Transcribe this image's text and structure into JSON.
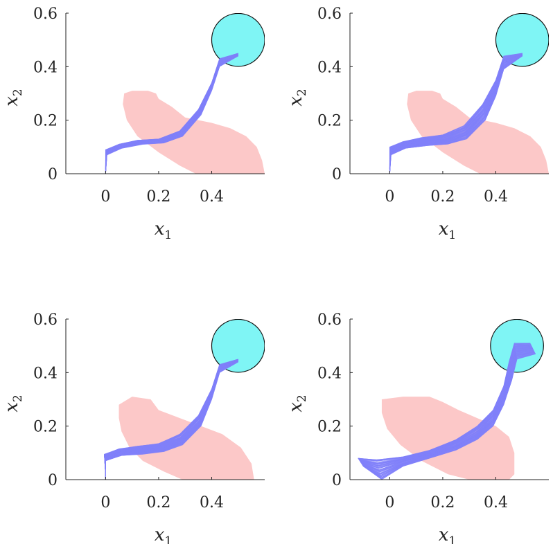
{
  "chart_data": [
    {
      "type": "scatter",
      "panel": "top-left",
      "xlabel": "x",
      "xlabel_sub": "1",
      "ylabel": "x",
      "ylabel_sub": "2",
      "xlim": [
        -0.15,
        0.6
      ],
      "ylim": [
        0,
        0.6
      ],
      "xticks": [
        0,
        0.2,
        0.4
      ],
      "xtick_labels": [
        "0",
        "0.2",
        "0.4"
      ],
      "yticks": [
        0,
        0.2,
        0.4,
        0.6
      ],
      "ytick_labels": [
        "0",
        "0.2",
        "0.4",
        "0.6"
      ],
      "target": {
        "center": [
          0.5,
          0.5
        ],
        "radius": 0.1
      },
      "unsafe_region": [
        [
          0.07,
          0.3
        ],
        [
          0.1,
          0.31
        ],
        [
          0.16,
          0.31
        ],
        [
          0.19,
          0.3
        ],
        [
          0.2,
          0.28
        ],
        [
          0.25,
          0.25
        ],
        [
          0.3,
          0.21
        ],
        [
          0.4,
          0.19
        ],
        [
          0.47,
          0.17
        ],
        [
          0.53,
          0.14
        ],
        [
          0.57,
          0.1
        ],
        [
          0.59,
          0.05
        ],
        [
          0.6,
          0
        ],
        [
          0.34,
          0
        ],
        [
          0.28,
          0.03
        ],
        [
          0.2,
          0.08
        ],
        [
          0.12,
          0.14
        ],
        [
          0.08,
          0.2
        ],
        [
          0.065,
          0.26
        ]
      ],
      "trajectory_band": {
        "upper": [
          [
            0.0,
            0.02
          ],
          [
            0.0,
            0.09
          ],
          [
            0.05,
            0.11
          ],
          [
            0.12,
            0.125
          ],
          [
            0.2,
            0.13
          ],
          [
            0.28,
            0.16
          ],
          [
            0.35,
            0.24
          ],
          [
            0.4,
            0.34
          ],
          [
            0.43,
            0.43
          ],
          [
            0.5,
            0.45
          ]
        ],
        "lower": [
          [
            0.0,
            0.0
          ],
          [
            0.005,
            0.07
          ],
          [
            0.06,
            0.095
          ],
          [
            0.14,
            0.11
          ],
          [
            0.22,
            0.115
          ],
          [
            0.29,
            0.14
          ],
          [
            0.36,
            0.22
          ],
          [
            0.4,
            0.31
          ],
          [
            0.43,
            0.4
          ],
          [
            0.5,
            0.44
          ]
        ]
      }
    },
    {
      "type": "scatter",
      "panel": "top-right",
      "xlabel": "x",
      "xlabel_sub": "1",
      "ylabel": "x",
      "ylabel_sub": "2",
      "xlim": [
        -0.15,
        0.6
      ],
      "ylim": [
        0,
        0.6
      ],
      "xticks": [
        0,
        0.2,
        0.4
      ],
      "xtick_labels": [
        "0",
        "0.2",
        "0.4"
      ],
      "yticks": [
        0,
        0.2,
        0.4,
        0.6
      ],
      "ytick_labels": [
        "0",
        "0.2",
        "0.4",
        "0.6"
      ],
      "target": {
        "center": [
          0.5,
          0.5
        ],
        "radius": 0.1
      },
      "unsafe_region": [
        [
          0.07,
          0.3
        ],
        [
          0.1,
          0.31
        ],
        [
          0.16,
          0.31
        ],
        [
          0.19,
          0.3
        ],
        [
          0.2,
          0.28
        ],
        [
          0.25,
          0.25
        ],
        [
          0.3,
          0.21
        ],
        [
          0.4,
          0.19
        ],
        [
          0.47,
          0.17
        ],
        [
          0.53,
          0.14
        ],
        [
          0.57,
          0.1
        ],
        [
          0.59,
          0.05
        ],
        [
          0.6,
          0
        ],
        [
          0.34,
          0
        ],
        [
          0.28,
          0.03
        ],
        [
          0.2,
          0.08
        ],
        [
          0.12,
          0.14
        ],
        [
          0.08,
          0.2
        ],
        [
          0.065,
          0.26
        ]
      ],
      "trajectory_band": {
        "upper": [
          [
            0.0,
            0.02
          ],
          [
            0.0,
            0.1
          ],
          [
            0.05,
            0.12
          ],
          [
            0.12,
            0.135
          ],
          [
            0.2,
            0.145
          ],
          [
            0.28,
            0.18
          ],
          [
            0.35,
            0.26
          ],
          [
            0.4,
            0.35
          ],
          [
            0.43,
            0.44
          ],
          [
            0.5,
            0.45
          ]
        ],
        "lower": [
          [
            0.0,
            0.0
          ],
          [
            0.005,
            0.07
          ],
          [
            0.06,
            0.095
          ],
          [
            0.14,
            0.105
          ],
          [
            0.22,
            0.11
          ],
          [
            0.29,
            0.13
          ],
          [
            0.36,
            0.2
          ],
          [
            0.4,
            0.29
          ],
          [
            0.43,
            0.39
          ],
          [
            0.5,
            0.44
          ]
        ]
      }
    },
    {
      "type": "scatter",
      "panel": "bottom-left",
      "xlabel": "x",
      "xlabel_sub": "1",
      "ylabel": "x",
      "ylabel_sub": "2",
      "xlim": [
        -0.15,
        0.6
      ],
      "ylim": [
        0,
        0.6
      ],
      "xticks": [
        0,
        0.2,
        0.4
      ],
      "xtick_labels": [
        "0",
        "0.2",
        "0.4"
      ],
      "yticks": [
        0,
        0.2,
        0.4,
        0.6
      ],
      "ytick_labels": [
        "0",
        "0.2",
        "0.4",
        "0.6"
      ],
      "target": {
        "center": [
          0.5,
          0.5
        ],
        "radius": 0.1
      },
      "unsafe_region": [
        [
          0.05,
          0.28
        ],
        [
          0.1,
          0.31
        ],
        [
          0.17,
          0.3
        ],
        [
          0.2,
          0.26
        ],
        [
          0.28,
          0.23
        ],
        [
          0.36,
          0.2
        ],
        [
          0.44,
          0.17
        ],
        [
          0.51,
          0.12
        ],
        [
          0.55,
          0.06
        ],
        [
          0.56,
          0.0
        ],
        [
          0.29,
          0.0
        ],
        [
          0.22,
          0.03
        ],
        [
          0.14,
          0.07
        ],
        [
          0.09,
          0.12
        ],
        [
          0.06,
          0.18
        ],
        [
          0.05,
          0.23
        ]
      ],
      "trajectory_band": {
        "upper": [
          [
            0.0,
            0.02
          ],
          [
            -0.005,
            0.095
          ],
          [
            0.05,
            0.115
          ],
          [
            0.12,
            0.125
          ],
          [
            0.2,
            0.135
          ],
          [
            0.28,
            0.17
          ],
          [
            0.35,
            0.24
          ],
          [
            0.4,
            0.34
          ],
          [
            0.43,
            0.43
          ],
          [
            0.5,
            0.45
          ]
        ],
        "lower": [
          [
            0.0,
            0.0
          ],
          [
            0.0,
            0.07
          ],
          [
            0.06,
            0.09
          ],
          [
            0.14,
            0.095
          ],
          [
            0.22,
            0.105
          ],
          [
            0.29,
            0.13
          ],
          [
            0.36,
            0.2
          ],
          [
            0.4,
            0.3
          ],
          [
            0.43,
            0.4
          ],
          [
            0.5,
            0.44
          ]
        ]
      }
    },
    {
      "type": "scatter",
      "panel": "bottom-right",
      "xlabel": "x",
      "xlabel_sub": "1",
      "ylabel": "x",
      "ylabel_sub": "2",
      "xlim": [
        -0.15,
        0.6
      ],
      "ylim": [
        0,
        0.6
      ],
      "xticks": [
        0,
        0.2,
        0.4
      ],
      "xtick_labels": [
        "0",
        "0.2",
        "0.4"
      ],
      "yticks": [
        0,
        0.2,
        0.4,
        0.6
      ],
      "ytick_labels": [
        "0",
        "0.2",
        "0.4",
        "0.6"
      ],
      "target": {
        "center": [
          0.48,
          0.5
        ],
        "radius": 0.1
      },
      "unsafe_region": [
        [
          -0.03,
          0.3
        ],
        [
          0.05,
          0.31
        ],
        [
          0.15,
          0.31
        ],
        [
          0.2,
          0.29
        ],
        [
          0.26,
          0.26
        ],
        [
          0.33,
          0.23
        ],
        [
          0.4,
          0.2
        ],
        [
          0.45,
          0.16
        ],
        [
          0.47,
          0.1
        ],
        [
          0.47,
          0.02
        ],
        [
          0.45,
          0.0
        ],
        [
          0.3,
          0.0
        ],
        [
          0.22,
          0.02
        ],
        [
          0.12,
          0.07
        ],
        [
          0.04,
          0.13
        ],
        [
          -0.01,
          0.19
        ],
        [
          -0.03,
          0.25
        ]
      ],
      "trajectory_band": {
        "upper": [
          [
            -0.12,
            0.08
          ],
          [
            -0.05,
            0.075
          ],
          [
            0.05,
            0.085
          ],
          [
            0.15,
            0.11
          ],
          [
            0.25,
            0.15
          ],
          [
            0.33,
            0.2
          ],
          [
            0.39,
            0.26
          ],
          [
            0.43,
            0.35
          ],
          [
            0.45,
            0.44
          ],
          [
            0.47,
            0.51
          ],
          [
            0.53,
            0.51
          ]
        ],
        "lower": [
          [
            -0.1,
            0.05
          ],
          [
            -0.03,
            0.0
          ],
          [
            0.05,
            0.05
          ],
          [
            0.15,
            0.08
          ],
          [
            0.25,
            0.11
          ],
          [
            0.33,
            0.15
          ],
          [
            0.39,
            0.2
          ],
          [
            0.43,
            0.28
          ],
          [
            0.46,
            0.37
          ],
          [
            0.48,
            0.45
          ],
          [
            0.55,
            0.47
          ]
        ]
      }
    }
  ],
  "colors": {
    "target": "#7ff5f5",
    "target_edge": "#111111",
    "unsafe": "#fcc8c8",
    "trajectory": "#8080fa",
    "axis": "#222222"
  }
}
